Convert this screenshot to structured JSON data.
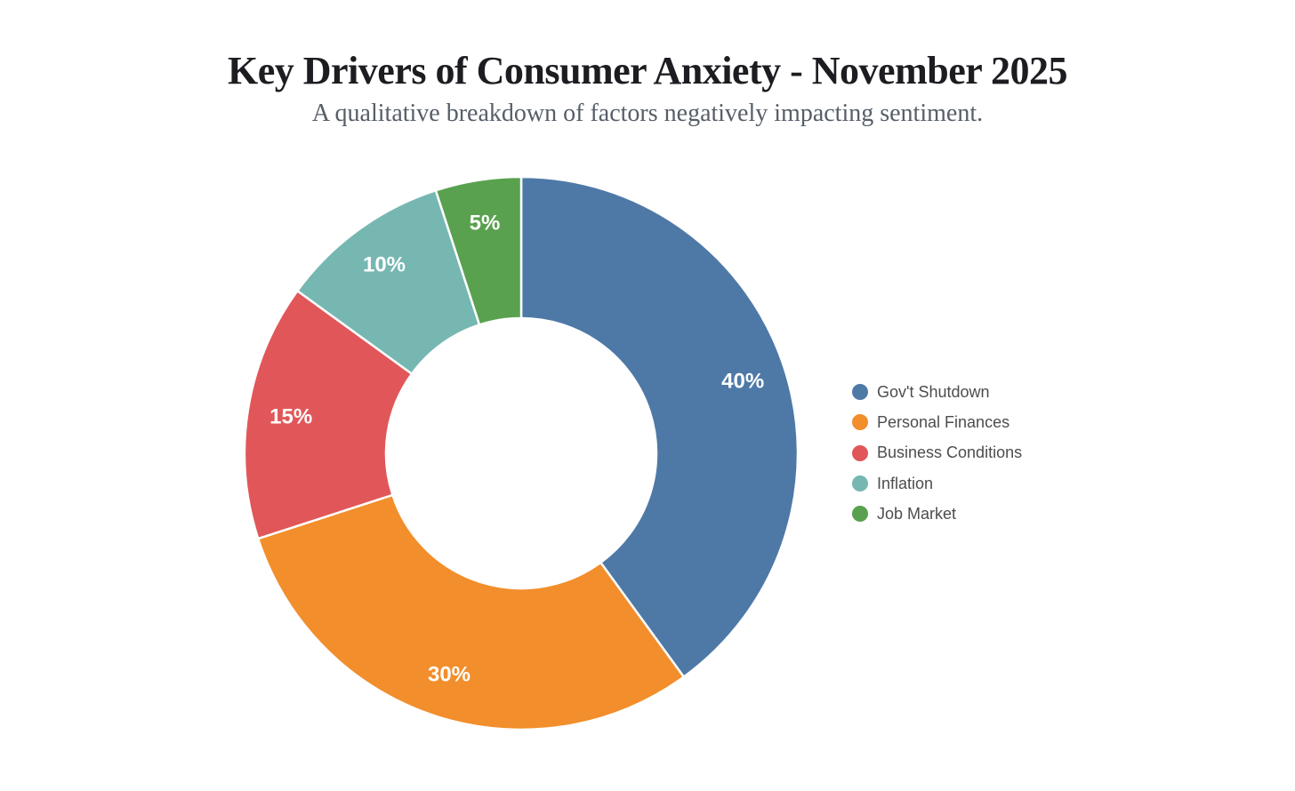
{
  "chart_data": {
    "type": "pie",
    "variant": "donut",
    "title": "Key Drivers of Consumer Anxiety - November 2025",
    "subtitle": "A qualitative breakdown of factors negatively impacting sentiment.",
    "unit": "%",
    "direction": "clockwise",
    "start_angle_deg": 0,
    "inner_radius_ratio": 0.49,
    "legend_position": "right",
    "background_color": "#ffffff",
    "slice_label_color": "#ffffff",
    "segments": [
      {
        "label": "Gov't Shutdown",
        "value": 40,
        "display": "40%",
        "color": "#4e79a7"
      },
      {
        "label": "Personal Finances",
        "value": 30,
        "display": "30%",
        "color": "#f28e2b"
      },
      {
        "label": "Business Conditions",
        "value": 15,
        "display": "15%",
        "color": "#e15759"
      },
      {
        "label": "Inflation",
        "value": 10,
        "display": "10%",
        "color": "#76b7b2"
      },
      {
        "label": "Job Market",
        "value": 5,
        "display": "5%",
        "color": "#59a14f"
      }
    ]
  }
}
